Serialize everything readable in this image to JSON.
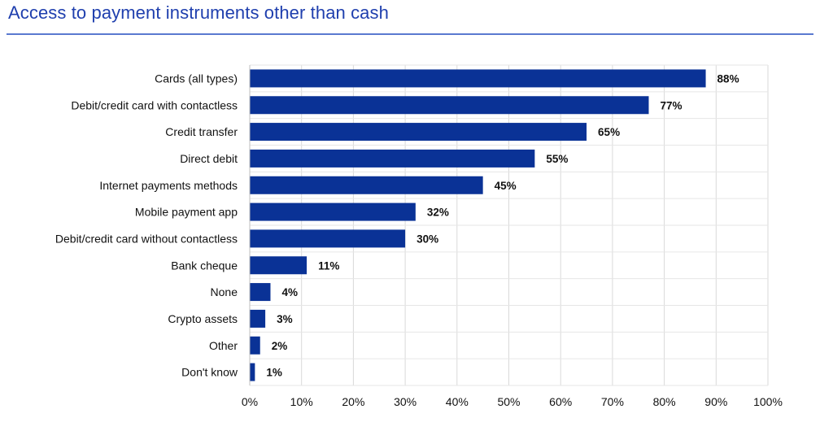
{
  "title": "Access to payment instruments other than cash",
  "chart_data": {
    "type": "bar",
    "orientation": "horizontal",
    "categories": [
      "Cards (all types)",
      "Debit/credit card with contactless",
      "Credit transfer",
      "Direct debit",
      "Internet payments methods",
      "Mobile payment app",
      "Debit/credit card without contactless",
      "Bank cheque",
      "None",
      "Crypto assets",
      "Other",
      "Don't know"
    ],
    "values": [
      88,
      77,
      65,
      55,
      45,
      32,
      30,
      11,
      4,
      3,
      2,
      1
    ],
    "value_labels": [
      "88%",
      "77%",
      "65%",
      "55%",
      "45%",
      "32%",
      "30%",
      "11%",
      "4%",
      "3%",
      "2%",
      "1%"
    ],
    "xticks": [
      "0%",
      "10%",
      "20%",
      "30%",
      "40%",
      "50%",
      "60%",
      "70%",
      "80%",
      "90%",
      "100%"
    ],
    "xlim": [
      0,
      100
    ],
    "grid": "vertical",
    "bar_color": "#0a3296"
  }
}
